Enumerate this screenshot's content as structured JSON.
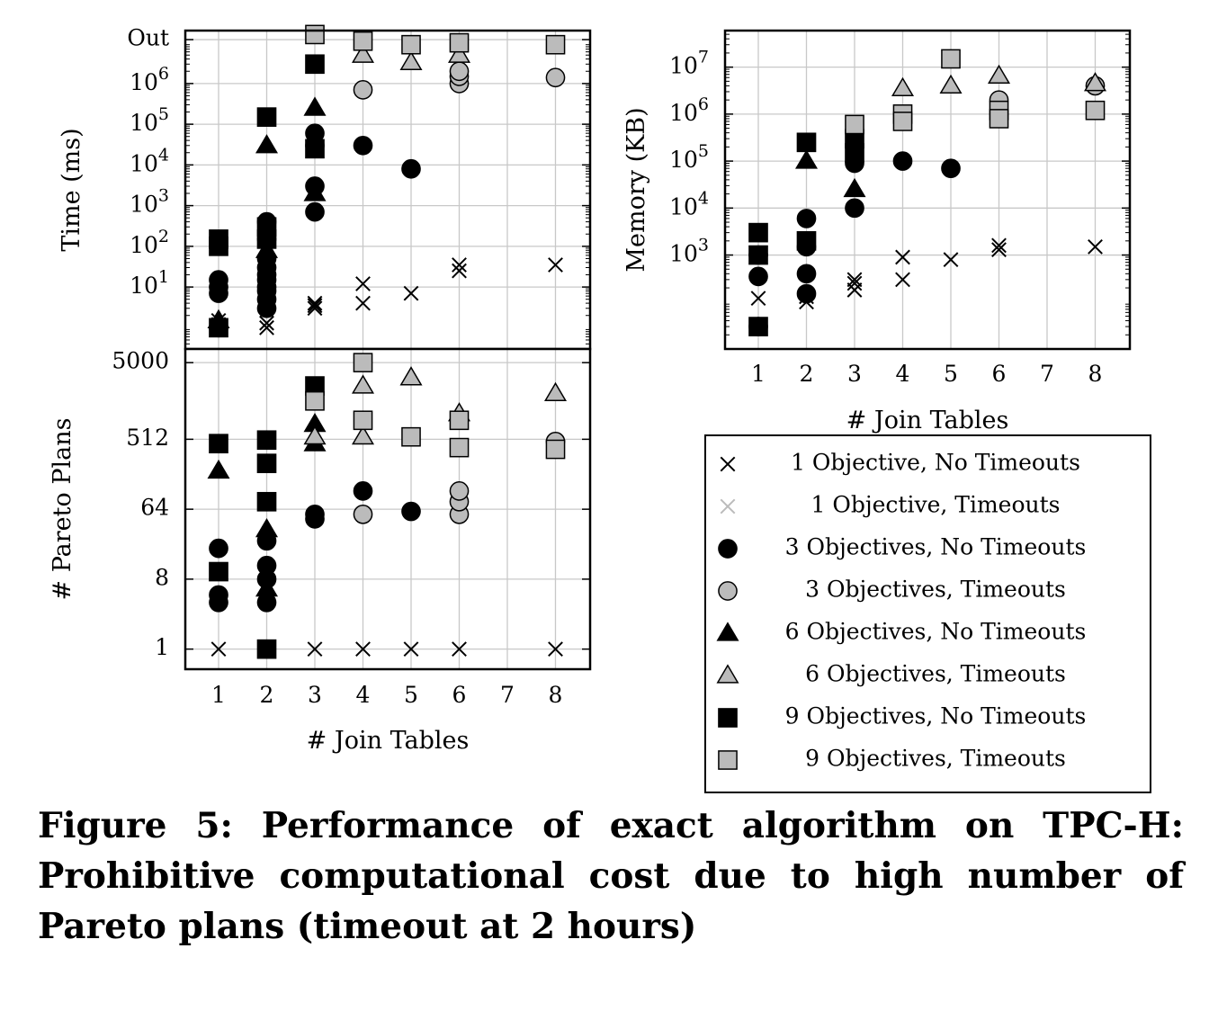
{
  "chart_data": [
    {
      "id": "time",
      "type": "scatter",
      "xlabel": "",
      "ylabel": "Time (ms)",
      "x_ticks": [
        1,
        2,
        3,
        4,
        5,
        6,
        7,
        8
      ],
      "y_scale": "log",
      "y_ticks": [
        "10^1",
        "10^2",
        "10^3",
        "10^4",
        "10^5",
        "10^6",
        "Out"
      ],
      "ylim": [
        0.3,
        20000000
      ],
      "grid": true,
      "series": [
        {
          "name": "1 Objective, No Timeouts",
          "x": [
            1,
            1,
            2,
            2,
            3,
            3,
            3,
            4,
            4,
            5,
            6,
            6,
            8
          ],
          "y": [
            1.5,
            1.2,
            1.0,
            1.3,
            3.0,
            3.5,
            4.0,
            4.0,
            12,
            7,
            25,
            35,
            35
          ]
        },
        {
          "name": "1 Objective, Timeouts",
          "x": [],
          "y": []
        },
        {
          "name": "3 Objectives, No Timeouts",
          "x": [
            1,
            1,
            1,
            1,
            2,
            2,
            2,
            2,
            2,
            2,
            2,
            2,
            2,
            2,
            3,
            3,
            3,
            3,
            4,
            5
          ],
          "y": [
            1,
            7,
            10,
            15,
            3,
            5,
            8,
            10,
            15,
            20,
            30,
            50,
            150,
            400,
            700,
            3000,
            30000,
            60000,
            30000,
            8000
          ]
        },
        {
          "name": "3 Objectives, Timeouts",
          "x": [
            4,
            6,
            6,
            6,
            8
          ],
          "y": [
            700000,
            1000000,
            1500000,
            2000000,
            1400000
          ]
        },
        {
          "name": "6 Objectives, No Timeouts",
          "x": [
            1,
            2,
            2,
            3,
            3
          ],
          "y": [
            1.5,
            30000,
            80,
            2000,
            250000
          ]
        },
        {
          "name": "6 Objectives, Timeouts",
          "x": [
            4,
            5,
            6
          ],
          "y": [
            5000000,
            3300000,
            5000000
          ]
        },
        {
          "name": "9 Objectives, No Timeouts",
          "x": [
            1,
            1,
            1,
            2,
            2,
            2,
            3,
            3
          ],
          "y": [
            1,
            100,
            150,
            150000,
            150,
            300,
            25000,
            3000000
          ]
        },
        {
          "name": "9 Objectives, Timeouts",
          "x": [
            3,
            4,
            5,
            6,
            8
          ],
          "y": [
            16000000,
            11000000,
            9000000,
            10000000,
            9000000
          ]
        }
      ]
    },
    {
      "id": "memory",
      "type": "scatter",
      "xlabel": "# Join Tables",
      "ylabel": "Memory (KB)",
      "x_ticks": [
        1,
        2,
        3,
        4,
        5,
        6,
        7,
        8
      ],
      "y_scale": "log",
      "y_ticks": [
        "10^3",
        "10^4",
        "10^5",
        "10^6",
        "10^7"
      ],
      "ylim": [
        10,
        60000000
      ],
      "grid": true,
      "series": [
        {
          "name": "1 Objective, No Timeouts",
          "x": [
            1,
            2,
            2,
            3,
            3,
            3,
            4,
            4,
            5,
            6,
            6,
            8
          ],
          "y": [
            120,
            100,
            130,
            180,
            250,
            300,
            900,
            300,
            800,
            1300,
            1600,
            1500
          ]
        },
        {
          "name": "1 Objective, Timeouts",
          "x": [],
          "y": []
        },
        {
          "name": "3 Objectives, No Timeouts",
          "x": [
            1,
            1,
            1,
            2,
            2,
            2,
            2,
            3,
            3,
            4,
            5
          ],
          "y": [
            30,
            350,
            1000,
            150,
            400,
            1500,
            6000,
            10000,
            90000,
            100000,
            70000
          ]
        },
        {
          "name": "3 Objectives, Timeouts",
          "x": [
            6,
            8
          ],
          "y": [
            2000000,
            4000000
          ]
        },
        {
          "name": "6 Objectives, No Timeouts",
          "x": [
            2,
            3
          ],
          "y": [
            100000,
            25000
          ]
        },
        {
          "name": "6 Objectives, Timeouts",
          "x": [
            4,
            5,
            6,
            8
          ],
          "y": [
            3500000,
            4000000,
            6500000,
            4500000
          ]
        },
        {
          "name": "9 Objectives, No Timeouts",
          "x": [
            1,
            1,
            1,
            2,
            2,
            3,
            3
          ],
          "y": [
            30,
            1000,
            3000,
            250000,
            2000,
            150000,
            300000
          ]
        },
        {
          "name": "9 Objectives, Timeouts",
          "x": [
            3,
            4,
            4,
            5,
            6,
            6,
            8
          ],
          "y": [
            600000,
            1000000,
            700000,
            15000000,
            1200000,
            800000,
            1200000
          ]
        }
      ]
    },
    {
      "id": "pareto",
      "type": "scatter",
      "xlabel": "# Join Tables",
      "ylabel": "# Pareto Plans",
      "x_ticks": [
        1,
        2,
        3,
        4,
        5,
        6,
        7,
        8
      ],
      "y_scale": "log2",
      "y_ticks": [
        1,
        8,
        64,
        512,
        5000
      ],
      "ylim": [
        0.55,
        7500
      ],
      "grid": true,
      "series": [
        {
          "name": "1 Objective, No Timeouts",
          "x": [
            1,
            2,
            3,
            4,
            5,
            6,
            8
          ],
          "y": [
            1,
            1,
            1,
            1,
            1,
            1,
            1
          ]
        },
        {
          "name": "1 Objective, Timeouts",
          "x": [],
          "y": []
        },
        {
          "name": "3 Objectives, No Timeouts",
          "x": [
            1,
            1,
            1,
            2,
            2,
            2,
            2,
            3,
            3,
            4,
            5
          ],
          "y": [
            4,
            5,
            20,
            4,
            8,
            12,
            25,
            48,
            55,
            110,
            60
          ]
        },
        {
          "name": "3 Objectives, Timeouts",
          "x": [
            4,
            6,
            6,
            6,
            8
          ],
          "y": [
            55,
            55,
            80,
            110,
            480
          ]
        },
        {
          "name": "6 Objectives, No Timeouts",
          "x": [
            1,
            2,
            2,
            3,
            3
          ],
          "y": [
            200,
            6,
            35,
            450,
            800
          ]
        },
        {
          "name": "6 Objectives, Timeouts",
          "x": [
            3,
            4,
            4,
            5,
            6,
            8
          ],
          "y": [
            550,
            2500,
            550,
            3200,
            1100,
            2000
          ]
        },
        {
          "name": "9 Objectives, No Timeouts",
          "x": [
            1,
            1,
            2,
            2,
            2,
            2,
            3
          ],
          "y": [
            10,
            450,
            1,
            80,
            250,
            500,
            2500
          ]
        },
        {
          "name": "9 Objectives, Timeouts",
          "x": [
            3,
            4,
            4,
            5,
            6,
            6,
            8
          ],
          "y": [
            1600,
            5000,
            900,
            550,
            900,
            400,
            380
          ]
        }
      ]
    }
  ],
  "legend": [
    {
      "label": "1 Objective, No Timeouts",
      "marker": "cross",
      "color": "#000000"
    },
    {
      "label": "1 Objective, Timeouts",
      "marker": "cross",
      "color": "#bbbbbb"
    },
    {
      "label": "3 Objectives, No Timeouts",
      "marker": "circle",
      "color": "#000000"
    },
    {
      "label": "3 Objectives, Timeouts",
      "marker": "circle",
      "color": "#bbbbbb"
    },
    {
      "label": "6 Objectives, No Timeouts",
      "marker": "triangle",
      "color": "#000000"
    },
    {
      "label": "6 Objectives, Timeouts",
      "marker": "triangle",
      "color": "#bbbbbb"
    },
    {
      "label": "9 Objectives, No Timeouts",
      "marker": "square",
      "color": "#000000"
    },
    {
      "label": "9 Objectives, Timeouts",
      "marker": "square",
      "color": "#bbbbbb"
    }
  ],
  "caption": "Figure 5:  Performance of exact algorithm on TPC-H: Prohibitive computational cost due to high number of Pareto plans (timeout at 2 hours)"
}
